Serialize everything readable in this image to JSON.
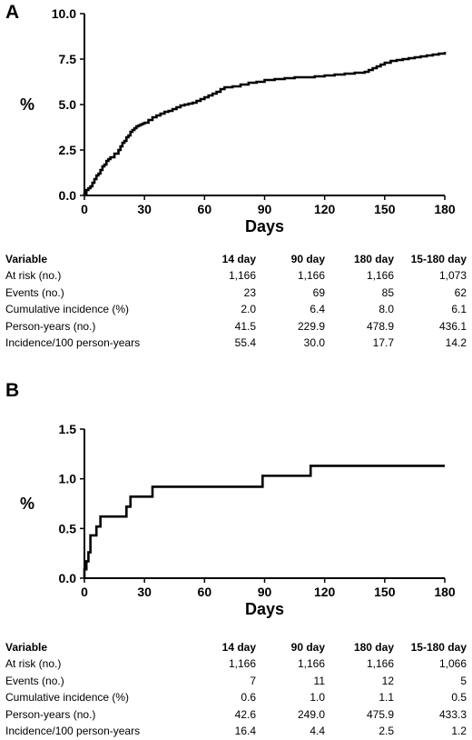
{
  "panels": [
    {
      "letter": "A",
      "chart_data": {
        "type": "line",
        "title": "",
        "xlabel": "Days",
        "ylabel": "%",
        "xlim": [
          0,
          180
        ],
        "ylim": [
          0,
          10
        ],
        "xticks": [
          0,
          30,
          60,
          90,
          120,
          150,
          180
        ],
        "yticks": [
          "0.0",
          "2.5",
          "5.0",
          "7.5",
          "10.0"
        ],
        "ytick_values": [
          0,
          2.5,
          5.0,
          7.5,
          10.0
        ],
        "grid": false,
        "legend": "none",
        "series": [
          {
            "style": "step",
            "color": "#000000",
            "x": [
              0,
              1,
              2,
              3,
              4,
              5,
              6,
              7,
              8,
              9,
              10,
              11,
              12,
              13,
              15,
              17,
              18,
              19,
              20,
              21,
              22,
              23,
              24,
              25,
              26,
              27,
              28,
              29,
              30,
              32,
              34,
              36,
              38,
              40,
              42,
              44,
              46,
              48,
              50,
              52,
              54,
              56,
              58,
              60,
              62,
              64,
              66,
              68,
              70,
              74,
              78,
              82,
              86,
              90,
              95,
              100,
              105,
              110,
              115,
              120,
              125,
              130,
              135,
              140,
              142,
              144,
              146,
              148,
              150,
              153,
              156,
              159,
              162,
              165,
              168,
              171,
              174,
              177,
              180
            ],
            "y": [
              0.1,
              0.3,
              0.4,
              0.5,
              0.7,
              0.9,
              1.1,
              1.2,
              1.4,
              1.6,
              1.7,
              1.9,
              2.0,
              2.1,
              2.3,
              2.5,
              2.7,
              2.9,
              3.0,
              3.2,
              3.3,
              3.5,
              3.6,
              3.7,
              3.8,
              3.85,
              3.9,
              3.95,
              4.0,
              4.15,
              4.3,
              4.4,
              4.5,
              4.6,
              4.65,
              4.75,
              4.85,
              4.95,
              5.0,
              5.05,
              5.1,
              5.2,
              5.3,
              5.4,
              5.5,
              5.6,
              5.7,
              5.85,
              5.95,
              6.0,
              6.1,
              6.2,
              6.25,
              6.35,
              6.4,
              6.45,
              6.5,
              6.5,
              6.55,
              6.6,
              6.65,
              6.7,
              6.75,
              6.8,
              6.9,
              7.0,
              7.1,
              7.2,
              7.3,
              7.4,
              7.45,
              7.5,
              7.55,
              7.6,
              7.65,
              7.7,
              7.75,
              7.8,
              7.9
            ]
          }
        ]
      },
      "table": {
        "headers": [
          "Variable",
          "14 day",
          "90 day",
          "180 day",
          "15-180 day"
        ],
        "rows": [
          [
            "At risk (no.)",
            "1,166",
            "1,166",
            "1,166",
            "1,073"
          ],
          [
            "Events (no.)",
            "23",
            "69",
            "85",
            "62"
          ],
          [
            "Cumulative incidence (%)",
            "2.0",
            "6.4",
            "8.0",
            "6.1"
          ],
          [
            "Person-years (no.)",
            "41.5",
            "229.9",
            "478.9",
            "436.1"
          ],
          [
            "Incidence/100 person-years",
            "55.4",
            "30.0",
            "17.7",
            "14.2"
          ]
        ]
      }
    },
    {
      "letter": "B",
      "chart_data": {
        "type": "line",
        "title": "",
        "xlabel": "Days",
        "ylabel": "%",
        "xlim": [
          0,
          180
        ],
        "ylim": [
          0,
          1.5
        ],
        "xticks": [
          0,
          30,
          60,
          90,
          120,
          150,
          180
        ],
        "yticks": [
          "0.0",
          "0.5",
          "1.0",
          "1.5"
        ],
        "ytick_values": [
          0,
          0.5,
          1.0,
          1.5
        ],
        "grid": false,
        "legend": "none",
        "series": [
          {
            "style": "step",
            "color": "#000000",
            "x": [
              0,
              1,
              2,
              3,
              6,
              8,
              21,
              23,
              34,
              89,
              113,
              180
            ],
            "y": [
              0.09,
              0.17,
              0.26,
              0.43,
              0.52,
              0.62,
              0.72,
              0.82,
              0.92,
              1.03,
              1.13,
              1.13
            ]
          }
        ]
      },
      "table": {
        "headers": [
          "Variable",
          "14 day",
          "90 day",
          "180 day",
          "15-180 day"
        ],
        "rows": [
          [
            "At risk (no.)",
            "1,166",
            "1,166",
            "1,166",
            "1,066"
          ],
          [
            "Events (no.)",
            "7",
            "11",
            "12",
            "5"
          ],
          [
            "Cumulative incidence (%)",
            "0.6",
            "1.0",
            "1.1",
            "0.5"
          ],
          [
            "Person-years (no.)",
            "42.6",
            "249.0",
            "475.9",
            "433.3"
          ],
          [
            "Incidence/100 person-years",
            "16.4",
            "4.4",
            "2.5",
            "1.2"
          ]
        ]
      }
    }
  ]
}
